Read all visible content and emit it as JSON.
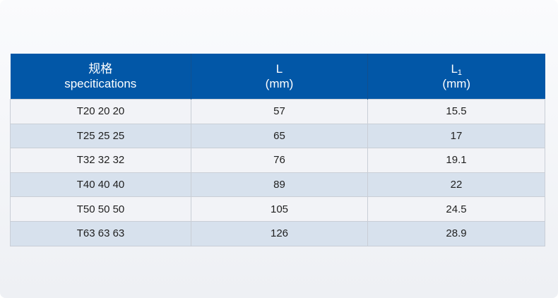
{
  "colors": {
    "background_top": "#fafbfd",
    "background_bottom": "#eef0f4",
    "header_bg": "#0257a7",
    "header_text": "#ffffff",
    "header_divider": "#11508f",
    "row_odd_bg": "#f2f3f7",
    "row_even_bg": "#d7e1ed",
    "row_border": "#c9ced6",
    "body_text": "#1f1f1f"
  },
  "table": {
    "header": {
      "col1": {
        "line1": "规格",
        "line2": "specitications"
      },
      "col2": {
        "label": "L",
        "unit": "(mm)"
      },
      "col3": {
        "label": "L",
        "sub": "1",
        "unit": "(mm)"
      }
    },
    "rows": [
      [
        "T20 20 20",
        "57",
        "15.5"
      ],
      [
        "T25 25 25",
        "65",
        "17"
      ],
      [
        "T32 32 32",
        "76",
        "19.1"
      ],
      [
        "T40 40 40",
        "89",
        "22"
      ],
      [
        "T50 50 50",
        "105",
        "24.5"
      ],
      [
        "T63 63 63",
        "126",
        "28.9"
      ]
    ]
  },
  "chart_data": {
    "type": "table",
    "title": "规格 specitications",
    "columns": [
      "规格 specitications",
      "L (mm)",
      "L1 (mm)"
    ],
    "rows": [
      {
        "specification": "T20 20 20",
        "L_mm": 57,
        "L1_mm": 15.5
      },
      {
        "specification": "T25 25 25",
        "L_mm": 65,
        "L1_mm": 17
      },
      {
        "specification": "T32 32 32",
        "L_mm": 76,
        "L1_mm": 19.1
      },
      {
        "specification": "T40 40 40",
        "L_mm": 89,
        "L1_mm": 22
      },
      {
        "specification": "T50 50 50",
        "L_mm": 105,
        "L1_mm": 24.5
      },
      {
        "specification": "T63 63 63",
        "L_mm": 126,
        "L1_mm": 28.9
      }
    ]
  }
}
